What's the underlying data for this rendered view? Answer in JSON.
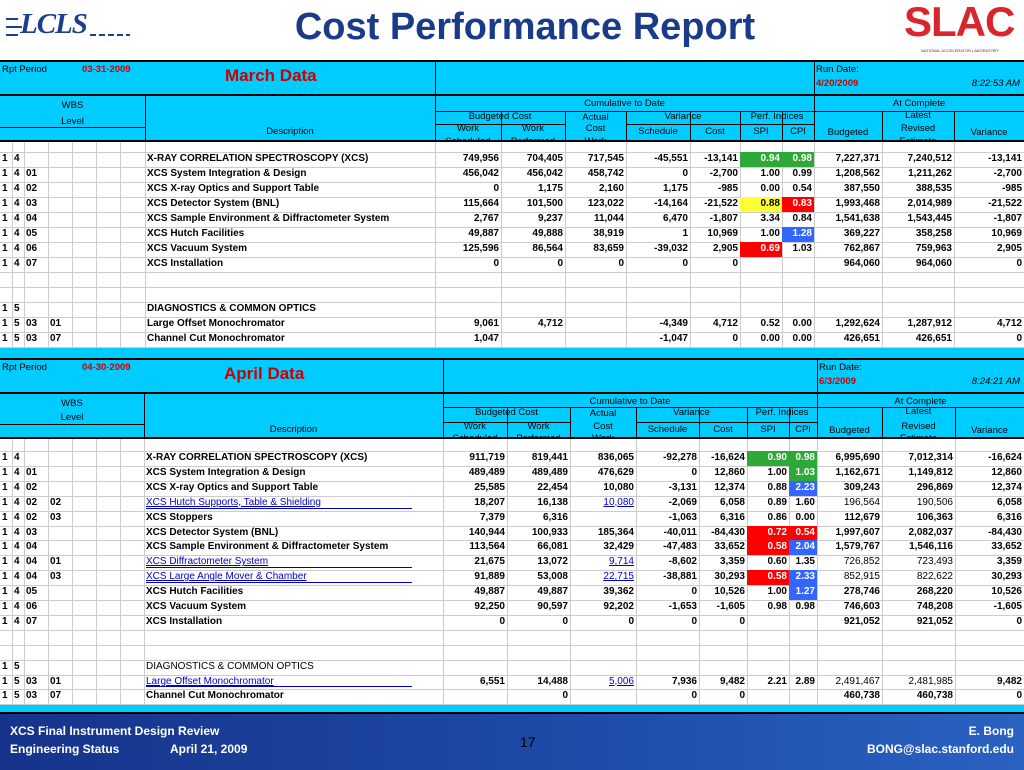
{
  "header": {
    "title": "Cost Performance Report",
    "lcls_logo": "LCLS",
    "slac_logo": "SLAC",
    "slac_sub": "NATIONAL ACCELERATOR LABORATORY"
  },
  "march": {
    "rpt_period_label": "Rpt Period",
    "rpt_period": "03-31-2009",
    "title": "March Data",
    "run_date_label": "Run Date:",
    "run_date": "4/20/2009",
    "run_time": "8:22:53 AM",
    "rows": [
      {
        "w": [
          "1",
          "4",
          "",
          "",
          ""
        ],
        "desc": "X-RAY CORRELATION SPECTROSCOPY (XCS)",
        "bold": true,
        "link": false,
        "bcws": "749,956",
        "bcwp": "704,405",
        "acwp": "717,545",
        "sv": "-45,551",
        "cv": "-13,141",
        "spi": "0.94",
        "cpi": "0.98",
        "spic": "green",
        "cpic": "green",
        "bud": "7,227,371",
        "lre": "7,240,512",
        "var": "-13,141"
      },
      {
        "w": [
          "1",
          "4",
          "01",
          "",
          ""
        ],
        "desc": "XCS System Integration & Design",
        "bold": true,
        "link": false,
        "bcws": "456,042",
        "bcwp": "456,042",
        "acwp": "458,742",
        "sv": "0",
        "cv": "-2,700",
        "spi": "1.00",
        "cpi": "0.99",
        "spic": "",
        "cpic": "",
        "bud": "1,208,562",
        "lre": "1,211,262",
        "var": "-2,700"
      },
      {
        "w": [
          "1",
          "4",
          "02",
          "",
          ""
        ],
        "desc": "XCS X-ray Optics and Support Table",
        "bold": true,
        "link": false,
        "bcws": "0",
        "bcwp": "1,175",
        "acwp": "2,160",
        "sv": "1,175",
        "cv": "-985",
        "spi": "0.00",
        "cpi": "0.54",
        "spic": "",
        "cpic": "",
        "bud": "387,550",
        "lre": "388,535",
        "var": "-985"
      },
      {
        "w": [
          "1",
          "4",
          "03",
          "",
          ""
        ],
        "desc": "XCS Detector System (BNL)",
        "bold": true,
        "link": false,
        "bcws": "115,664",
        "bcwp": "101,500",
        "acwp": "123,022",
        "sv": "-14,164",
        "cv": "-21,522",
        "spi": "0.88",
        "cpi": "0.83",
        "spic": "yellow",
        "cpic": "red",
        "bud": "1,993,468",
        "lre": "2,014,989",
        "var": "-21,522"
      },
      {
        "w": [
          "1",
          "4",
          "04",
          "",
          ""
        ],
        "desc": "XCS Sample Environment & Diffractometer System",
        "bold": true,
        "link": false,
        "bcws": "2,767",
        "bcwp": "9,237",
        "acwp": "11,044",
        "sv": "6,470",
        "cv": "-1,807",
        "spi": "3.34",
        "cpi": "0.84",
        "spic": "",
        "cpic": "",
        "bud": "1,541,638",
        "lre": "1,543,445",
        "var": "-1,807"
      },
      {
        "w": [
          "1",
          "4",
          "05",
          "",
          ""
        ],
        "desc": "XCS Hutch Facilities",
        "bold": true,
        "link": false,
        "bcws": "49,887",
        "bcwp": "49,888",
        "acwp": "38,919",
        "sv": "1",
        "cv": "10,969",
        "spi": "1.00",
        "cpi": "1.28",
        "spic": "",
        "cpic": "blue",
        "bud": "369,227",
        "lre": "358,258",
        "var": "10,969"
      },
      {
        "w": [
          "1",
          "4",
          "06",
          "",
          ""
        ],
        "desc": "XCS Vacuum System",
        "bold": true,
        "link": false,
        "bcws": "125,596",
        "bcwp": "86,564",
        "acwp": "83,659",
        "sv": "-39,032",
        "cv": "2,905",
        "spi": "0.69",
        "cpi": "1.03",
        "spic": "red",
        "cpic": "",
        "bud": "762,867",
        "lre": "759,963",
        "var": "2,905"
      },
      {
        "w": [
          "1",
          "4",
          "07",
          "",
          ""
        ],
        "desc": "XCS Installation",
        "bold": true,
        "link": false,
        "bcws": "0",
        "bcwp": "0",
        "acwp": "0",
        "sv": "0",
        "cv": "0",
        "spi": "",
        "cpi": "",
        "spic": "",
        "cpic": "",
        "bud": "964,060",
        "lre": "964,060",
        "var": "0"
      },
      {
        "blank": true
      },
      {
        "blank": true
      },
      {
        "w": [
          "1",
          "5",
          "",
          "",
          ""
        ],
        "desc": "DIAGNOSTICS & COMMON OPTICS",
        "bold": true,
        "link": false,
        "bcws": "",
        "bcwp": "",
        "acwp": "",
        "sv": "",
        "cv": "",
        "spi": "",
        "cpi": "",
        "spic": "",
        "cpic": "",
        "bud": "",
        "lre": "",
        "var": ""
      },
      {
        "w": [
          "1",
          "5",
          "03",
          "01",
          ""
        ],
        "desc": "Large Offset Monochromator",
        "bold": true,
        "link": false,
        "bcws": "9,061",
        "bcwp": "4,712",
        "acwp": "",
        "sv": "-4,349",
        "cv": "4,712",
        "spi": "0.52",
        "cpi": "0.00",
        "spic": "",
        "cpic": "",
        "bud": "1,292,624",
        "lre": "1,287,912",
        "var": "4,712"
      },
      {
        "w": [
          "1",
          "5",
          "03",
          "07",
          ""
        ],
        "desc": "Channel Cut Monochromator",
        "bold": true,
        "link": false,
        "bcws": "1,047",
        "bcwp": "",
        "acwp": "",
        "sv": "-1,047",
        "cv": "0",
        "spi": "0.00",
        "cpi": "0.00",
        "spic": "",
        "cpic": "",
        "bud": "426,651",
        "lre": "426,651",
        "var": "0"
      }
    ]
  },
  "april": {
    "rpt_period_label": "Rpt Period",
    "rpt_period": "04-30-2009",
    "title": "April Data",
    "run_date_label": "Run Date:",
    "run_date": "6/3/2009",
    "run_time": "8:24:21 AM",
    "rows": [
      {
        "w": [
          "1",
          "4",
          "",
          "",
          ""
        ],
        "desc": "X-RAY CORRELATION SPECTROSCOPY (XCS)",
        "bold": true,
        "link": false,
        "bcws": "911,719",
        "bcwp": "819,441",
        "acwp": "836,065",
        "sv": "-92,278",
        "cv": "-16,624",
        "spi": "0.90",
        "cpi": "0.98",
        "spic": "green",
        "cpic": "green",
        "bud": "6,995,690",
        "lre": "7,012,314",
        "var": "-16,624"
      },
      {
        "w": [
          "1",
          "4",
          "01",
          "",
          ""
        ],
        "desc": "XCS System Integration & Design",
        "bold": true,
        "link": false,
        "bcws": "489,489",
        "bcwp": "489,489",
        "acwp": "476,629",
        "sv": "0",
        "cv": "12,860",
        "spi": "1.00",
        "cpi": "1.03",
        "spic": "",
        "cpic": "green",
        "bud": "1,162,671",
        "lre": "1,149,812",
        "var": "12,860"
      },
      {
        "w": [
          "1",
          "4",
          "02",
          "",
          ""
        ],
        "desc": "XCS X-ray Optics and Support Table",
        "bold": true,
        "link": false,
        "bcws": "25,585",
        "bcwp": "22,454",
        "acwp": "10,080",
        "sv": "-3,131",
        "cv": "12,374",
        "spi": "0.88",
        "cpi": "2.23",
        "spic": "",
        "cpic": "blue",
        "bud": "309,243",
        "lre": "296,869",
        "var": "12,374"
      },
      {
        "w": [
          "1",
          "4",
          "02",
          "02",
          ""
        ],
        "desc": "XCS Hutch Supports, Table & Shielding",
        "bold": false,
        "link": true,
        "bcws": "18,207",
        "bcwp": "16,138",
        "acwp": "10,080",
        "acwplink": true,
        "sv": "-2,069",
        "cv": "6,058",
        "spi": "0.89",
        "cpi": "1.60",
        "spic": "",
        "cpic": "",
        "bud": "196,564",
        "lre": "190,506",
        "var": "6,058"
      },
      {
        "w": [
          "1",
          "4",
          "02",
          "03",
          ""
        ],
        "desc": "XCS Stoppers",
        "bold": true,
        "link": false,
        "bcws": "7,379",
        "bcwp": "6,316",
        "acwp": "",
        "sv": "-1,063",
        "cv": "6,316",
        "spi": "0.86",
        "cpi": "0.00",
        "spic": "",
        "cpic": "",
        "bud": "112,679",
        "lre": "106,363",
        "var": "6,316"
      },
      {
        "w": [
          "1",
          "4",
          "03",
          "",
          ""
        ],
        "desc": "XCS Detector System (BNL)",
        "bold": true,
        "link": false,
        "bcws": "140,944",
        "bcwp": "100,933",
        "acwp": "185,364",
        "sv": "-40,011",
        "cv": "-84,430",
        "spi": "0.72",
        "cpi": "0.54",
        "spic": "red",
        "cpic": "red",
        "bud": "1,997,607",
        "lre": "2,082,037",
        "var": "-84,430"
      },
      {
        "w": [
          "1",
          "4",
          "04",
          "",
          ""
        ],
        "desc": "XCS Sample Environment & Diffractometer System",
        "bold": true,
        "link": false,
        "bcws": "113,564",
        "bcwp": "66,081",
        "acwp": "32,429",
        "sv": "-47,483",
        "cv": "33,652",
        "spi": "0.58",
        "cpi": "2.04",
        "spic": "red",
        "cpic": "blue",
        "bud": "1,579,767",
        "lre": "1,546,116",
        "var": "33,652"
      },
      {
        "w": [
          "1",
          "4",
          "04",
          "01",
          ""
        ],
        "desc": "XCS Diffractometer System",
        "bold": false,
        "link": true,
        "bcws": "21,675",
        "bcwp": "13,072",
        "acwp": "9,714",
        "acwplink": true,
        "sv": "-8,602",
        "cv": "3,359",
        "spi": "0.60",
        "cpi": "1.35",
        "spic": "",
        "cpic": "",
        "bud": "726,852",
        "lre": "723,493",
        "var": "3,359"
      },
      {
        "w": [
          "1",
          "4",
          "04",
          "03",
          ""
        ],
        "desc": "XCS Large Angle Mover & Chamber",
        "bold": false,
        "link": true,
        "bcws": "91,889",
        "bcwp": "53,008",
        "acwp": "22,715",
        "acwplink": true,
        "sv": "-38,881",
        "cv": "30,293",
        "spi": "0.58",
        "cpi": "2.33",
        "spic": "red",
        "cpic": "blue",
        "bud": "852,915",
        "lre": "822,622",
        "var": "30,293"
      },
      {
        "w": [
          "1",
          "4",
          "05",
          "",
          ""
        ],
        "desc": "XCS Hutch Facilities",
        "bold": true,
        "link": false,
        "bcws": "49,887",
        "bcwp": "49,887",
        "acwp": "39,362",
        "sv": "0",
        "cv": "10,526",
        "spi": "1.00",
        "cpi": "1.27",
        "spic": "",
        "cpic": "blue",
        "bud": "278,746",
        "lre": "268,220",
        "var": "10,526"
      },
      {
        "w": [
          "1",
          "4",
          "06",
          "",
          ""
        ],
        "desc": "XCS Vacuum System",
        "bold": true,
        "link": false,
        "bcws": "92,250",
        "bcwp": "90,597",
        "acwp": "92,202",
        "sv": "-1,653",
        "cv": "-1,605",
        "spi": "0.98",
        "cpi": "0.98",
        "spic": "",
        "cpic": "",
        "bud": "746,603",
        "lre": "748,208",
        "var": "-1,605"
      },
      {
        "w": [
          "1",
          "4",
          "07",
          "",
          ""
        ],
        "desc": "XCS Installation",
        "bold": true,
        "link": false,
        "bcws": "0",
        "bcwp": "0",
        "acwp": "0",
        "sv": "0",
        "cv": "0",
        "spi": "",
        "cpi": "",
        "spic": "",
        "cpic": "",
        "bud": "921,052",
        "lre": "921,052",
        "var": "0"
      },
      {
        "blank": true
      },
      {
        "blank": true
      },
      {
        "w": [
          "1",
          "5",
          "",
          "",
          ""
        ],
        "desc": "DIAGNOSTICS & COMMON OPTICS",
        "bold": false,
        "link": false,
        "bcws": "",
        "bcwp": "",
        "acwp": "",
        "sv": "",
        "cv": "",
        "spi": "",
        "cpi": "",
        "spic": "",
        "cpic": "",
        "bud": "",
        "lre": "",
        "var": ""
      },
      {
        "w": [
          "1",
          "5",
          "03",
          "01",
          ""
        ],
        "desc": "Large Offset Monochromator",
        "bold": false,
        "link": true,
        "bcws": "6,551",
        "bcwp": "14,488",
        "acwp": "5,006",
        "acwplink": true,
        "sv": "7,936",
        "cv": "9,482",
        "spi": "2.21",
        "cpi": "2.89",
        "spic": "",
        "cpic": "",
        "bud": "2,491,467",
        "lre": "2,481,985",
        "var": "9,482"
      },
      {
        "w": [
          "1",
          "5",
          "03",
          "07",
          ""
        ],
        "desc": "Channel Cut Monochromator",
        "bold": true,
        "link": false,
        "bcws": "",
        "bcwp": "0",
        "acwp": "",
        "sv": "0",
        "cv": "0",
        "spi": "",
        "cpi": "",
        "spic": "",
        "cpic": "",
        "bud": "460,738",
        "lre": "460,738",
        "var": "0"
      }
    ]
  },
  "columns": {
    "wbs": "WBS",
    "level": "Level",
    "description": "Description",
    "cumulative": "Cumulative to Date",
    "budgeted_cost": "Budgeted Cost",
    "work_scheduled_1": "Work",
    "work_scheduled_2": "Scheduled",
    "work_performed_1": "Work",
    "work_performed_2": "Performed",
    "actual_1": "Actual",
    "actual_2": "Cost",
    "actual_3": "Work",
    "variance": "Variance",
    "schedule": "Schedule",
    "cost": "Cost",
    "perf": "Perf. Indices",
    "spi": "SPI",
    "cpi": "CPI",
    "at_complete": "At Complete",
    "budgeted": "Budgeted",
    "latest_1": "Latest",
    "latest_2": "Revised",
    "latest_3": "Estimate",
    "variance_col": "Variance"
  },
  "footer": {
    "line1": "XCS Final Instrument Design Review",
    "line2a": "Engineering Status",
    "line2b": "April 21, 2009",
    "page": "17",
    "author": "E. Bong",
    "email": "BONG@slac.stanford.edu"
  }
}
